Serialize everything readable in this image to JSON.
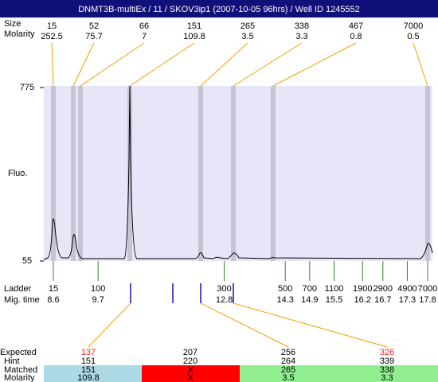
{
  "title": "DNMT3B-multiEx / 11 / SKOV3ip1 (2007-10-05 96hrs) / Well ID 1245552",
  "peaks": {
    "size_label": "Size",
    "molarity_label": "Molarity",
    "sizes": [
      15,
      52,
      66,
      151,
      265,
      338,
      467,
      7000
    ],
    "molarities": [
      252.5,
      75.7,
      7,
      109.8,
      3.5,
      3.3,
      0.8,
      0.5
    ]
  },
  "y_axis": {
    "label": "Fluo.",
    "ticks": [
      775,
      55
    ]
  },
  "ladder": {
    "label": "Ladder",
    "time_label": "Mig. time",
    "sizes": [
      15,
      100,
      300,
      500,
      700,
      1100,
      1900,
      2900,
      4900,
      7000
    ],
    "times": [
      8.6,
      9.7,
      12.8,
      14.3,
      14.9,
      15.5,
      16.2,
      16.7,
      17.3,
      17.8
    ]
  },
  "expected": {
    "expected_label": "Expected",
    "hint_label": "Hint",
    "matched_label": "Matched",
    "molarity_label": "Molarity",
    "expected": [
      137,
      207,
      256,
      326
    ],
    "highlight": [
      true,
      false,
      false,
      true
    ],
    "hint": [
      151,
      220,
      264,
      339
    ],
    "matched": [
      151,
      "X",
      265,
      338
    ],
    "molarity": [
      109.8,
      "X",
      3.5,
      3.3
    ],
    "colors": [
      "#add8e6",
      "#ff0000",
      "#90ee90",
      "#90ee90"
    ]
  }
}
